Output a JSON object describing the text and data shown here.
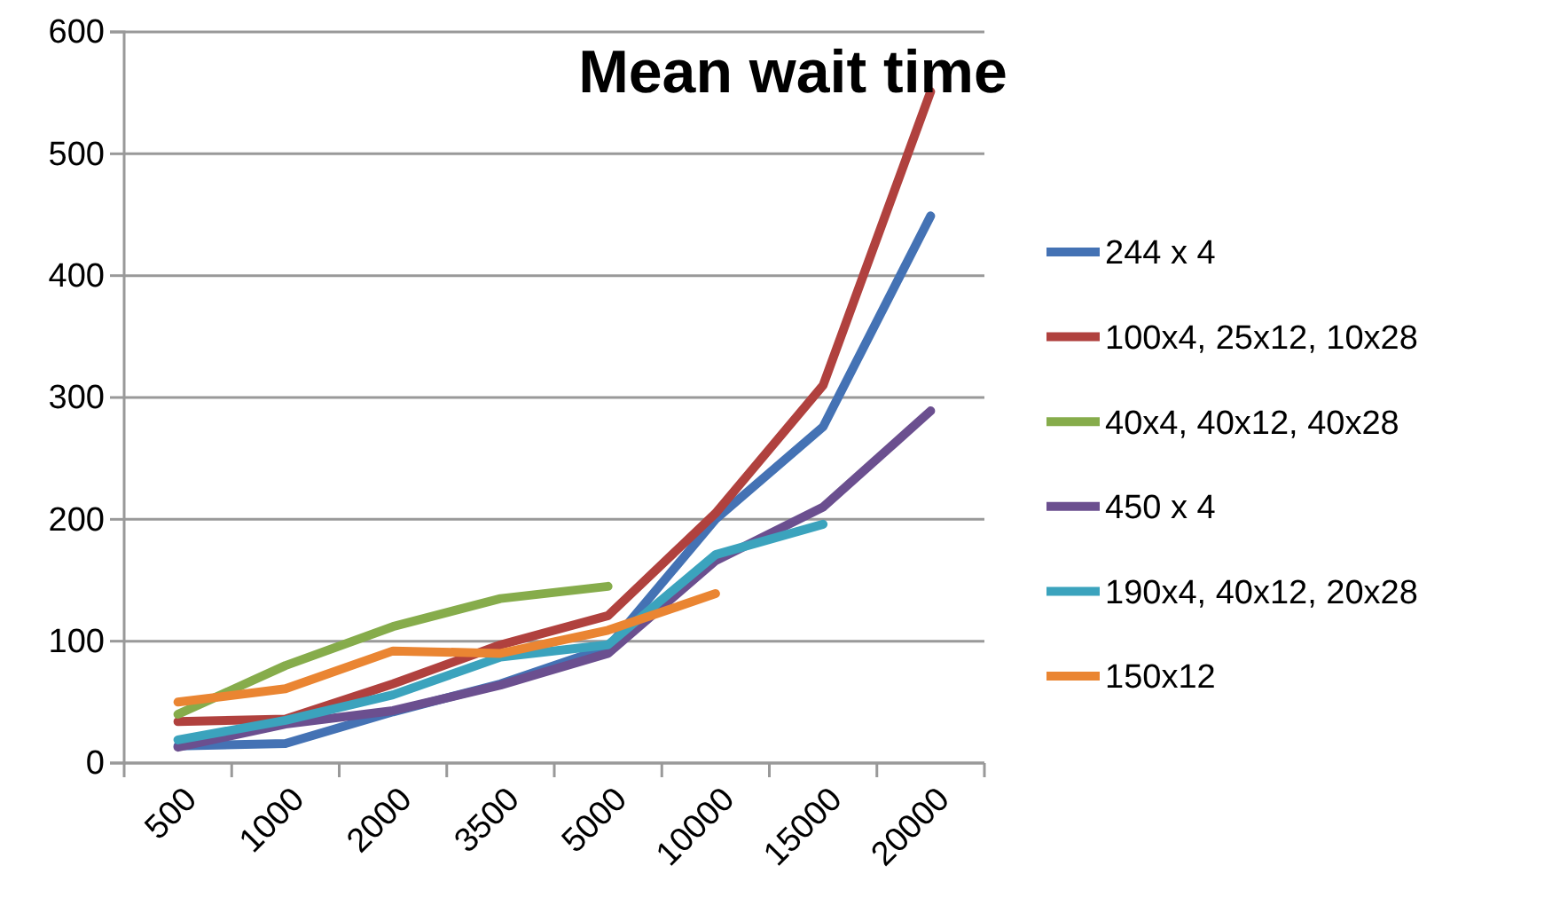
{
  "chart_data": {
    "type": "line",
    "title": "Mean wait time",
    "categories": [
      "500",
      "1000",
      "2000",
      "3500",
      "5000",
      "10000",
      "15000",
      "20000"
    ],
    "series": [
      {
        "name": "244 x 4",
        "color": "#4472b4",
        "values": [
          14,
          16,
          42,
          65,
          95,
          200,
          276,
          449
        ]
      },
      {
        "name": "100x4, 25x12, 10x28",
        "color": "#b0413e",
        "values": [
          34,
          36,
          65,
          97,
          121,
          205,
          310,
          551
        ]
      },
      {
        "name": "40x4, 40x12, 40x28",
        "color": "#86ac4b",
        "values": [
          40,
          80,
          112,
          135,
          145,
          null,
          null,
          null
        ]
      },
      {
        "name": "450 x 4",
        "color": "#6b4f8f",
        "values": [
          13,
          32,
          43,
          64,
          90,
          166,
          210,
          289
        ]
      },
      {
        "name": "190x4, 40x12, 20x28",
        "color": "#3ba3bd",
        "values": [
          19,
          35,
          56,
          87,
          97,
          171,
          196,
          null
        ]
      },
      {
        "name": "150x12",
        "color": "#ea8532",
        "values": [
          50,
          61,
          92,
          90,
          109,
          139,
          null,
          null
        ]
      }
    ],
    "ylim": [
      0,
      600
    ],
    "yticks": [
      0,
      100,
      200,
      300,
      400,
      500,
      600
    ],
    "grid": "y",
    "legend": "right"
  }
}
